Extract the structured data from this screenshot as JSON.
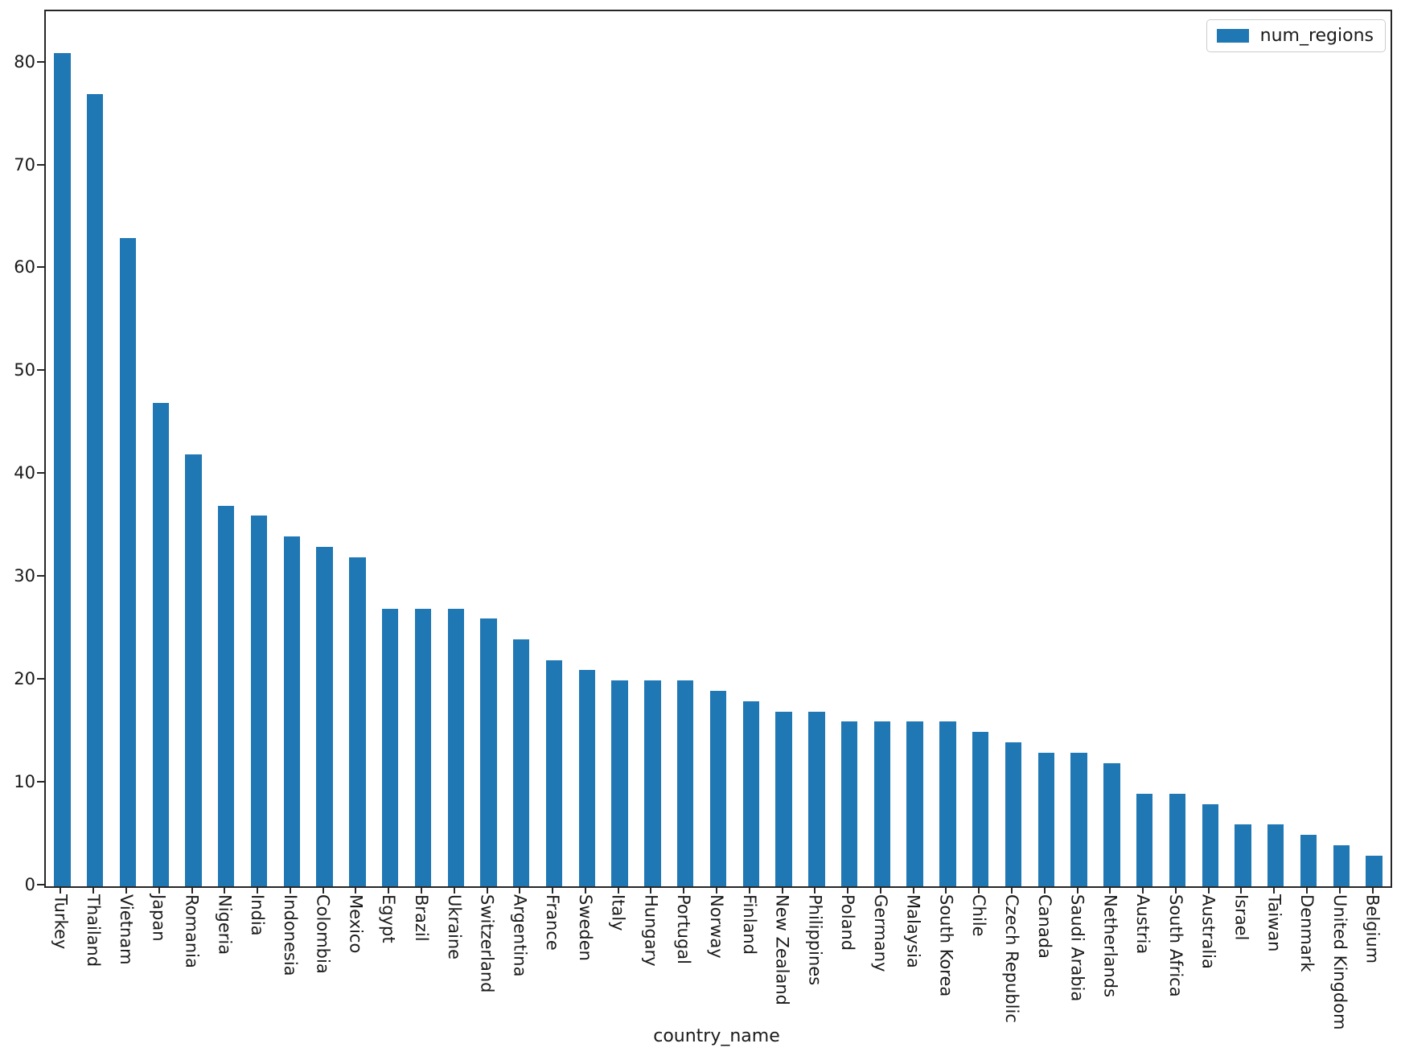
{
  "figure": {
    "background": "#ffffff"
  },
  "chart_data": {
    "type": "bar",
    "title": "",
    "xlabel": "country_name",
    "ylabel": "",
    "bar_color": "#1f77b4",
    "axis_color": "#262626",
    "ylim": [
      0,
      85.05
    ],
    "yticks": [
      0,
      10,
      20,
      30,
      40,
      50,
      60,
      70,
      80
    ],
    "grid": false,
    "legend": {
      "label": "num_regions",
      "position": "upper right"
    },
    "categories": [
      "Turkey",
      "Thailand",
      "Vietnam",
      "Japan",
      "Romania",
      "Nigeria",
      "India",
      "Indonesia",
      "Colombia",
      "Mexico",
      "Egypt",
      "Brazil",
      "Ukraine",
      "Switzerland",
      "Argentina",
      "France",
      "Sweden",
      "Italy",
      "Hungary",
      "Portugal",
      "Norway",
      "Finland",
      "New Zealand",
      "Philippines",
      "Poland",
      "Germany",
      "Malaysia",
      "South Korea",
      "Chile",
      "Czech Republic",
      "Canada",
      "Saudi Arabia",
      "Netherlands",
      "Austria",
      "South Africa",
      "Australia",
      "Israel",
      "Taiwan",
      "Denmark",
      "United Kingdom",
      "Belgium"
    ],
    "values": [
      81,
      77,
      63,
      47,
      42,
      37,
      36,
      34,
      33,
      32,
      27,
      27,
      27,
      26,
      24,
      22,
      21,
      20,
      20,
      20,
      19,
      18,
      17,
      17,
      16,
      16,
      16,
      16,
      15,
      14,
      13,
      13,
      12,
      9,
      9,
      8,
      6,
      6,
      5,
      4,
      3
    ]
  }
}
